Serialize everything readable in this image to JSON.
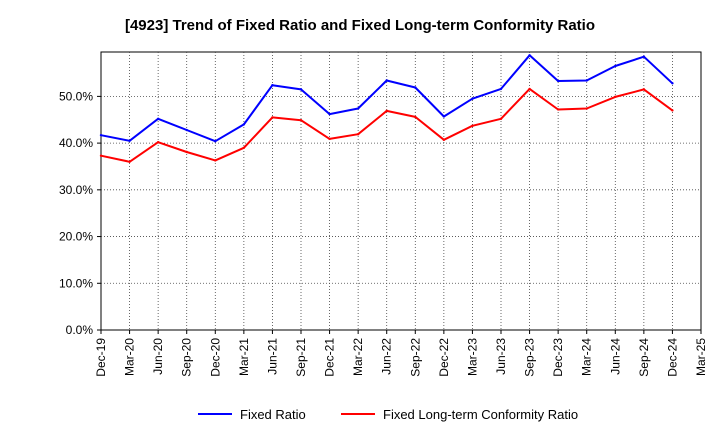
{
  "chart_data": {
    "type": "line",
    "title": "[4923]  Trend of Fixed Ratio and Fixed Long-term Conformity Ratio",
    "xlabel": "",
    "ylabel": "",
    "categories": [
      "Dec-19",
      "Mar-20",
      "Jun-20",
      "Sep-20",
      "Dec-20",
      "Mar-21",
      "Jun-21",
      "Sep-21",
      "Dec-21",
      "Mar-22",
      "Jun-22",
      "Sep-22",
      "Dec-22",
      "Mar-23",
      "Jun-23",
      "Sep-23",
      "Dec-23",
      "Mar-24",
      "Jun-24",
      "Sep-24",
      "Dec-24",
      "Mar-25"
    ],
    "ylim": [
      0,
      59.5
    ],
    "yticks": [
      0,
      10,
      20,
      30,
      40,
      50
    ],
    "ytick_labels": [
      "0.0%",
      "10.0%",
      "20.0%",
      "30.0%",
      "40.0%",
      "50.0%"
    ],
    "grid": true,
    "legend_position": "bottom",
    "series": [
      {
        "name": "Fixed Ratio",
        "color": "#0000ff",
        "values": [
          41.7,
          40.5,
          45.2,
          42.8,
          40.4,
          44.0,
          52.4,
          51.5,
          46.2,
          47.4,
          53.4,
          51.9,
          45.7,
          49.5,
          51.6,
          58.8,
          53.3,
          53.4,
          56.5,
          58.5,
          52.8,
          null
        ]
      },
      {
        "name": "Fixed Long-term Conformity Ratio",
        "color": "#ff0000",
        "values": [
          37.3,
          36.0,
          40.2,
          38.1,
          36.3,
          39.0,
          45.5,
          44.9,
          40.9,
          41.9,
          46.9,
          45.6,
          40.7,
          43.7,
          45.2,
          51.6,
          47.2,
          47.4,
          49.9,
          51.5,
          47.0,
          null
        ]
      }
    ]
  }
}
